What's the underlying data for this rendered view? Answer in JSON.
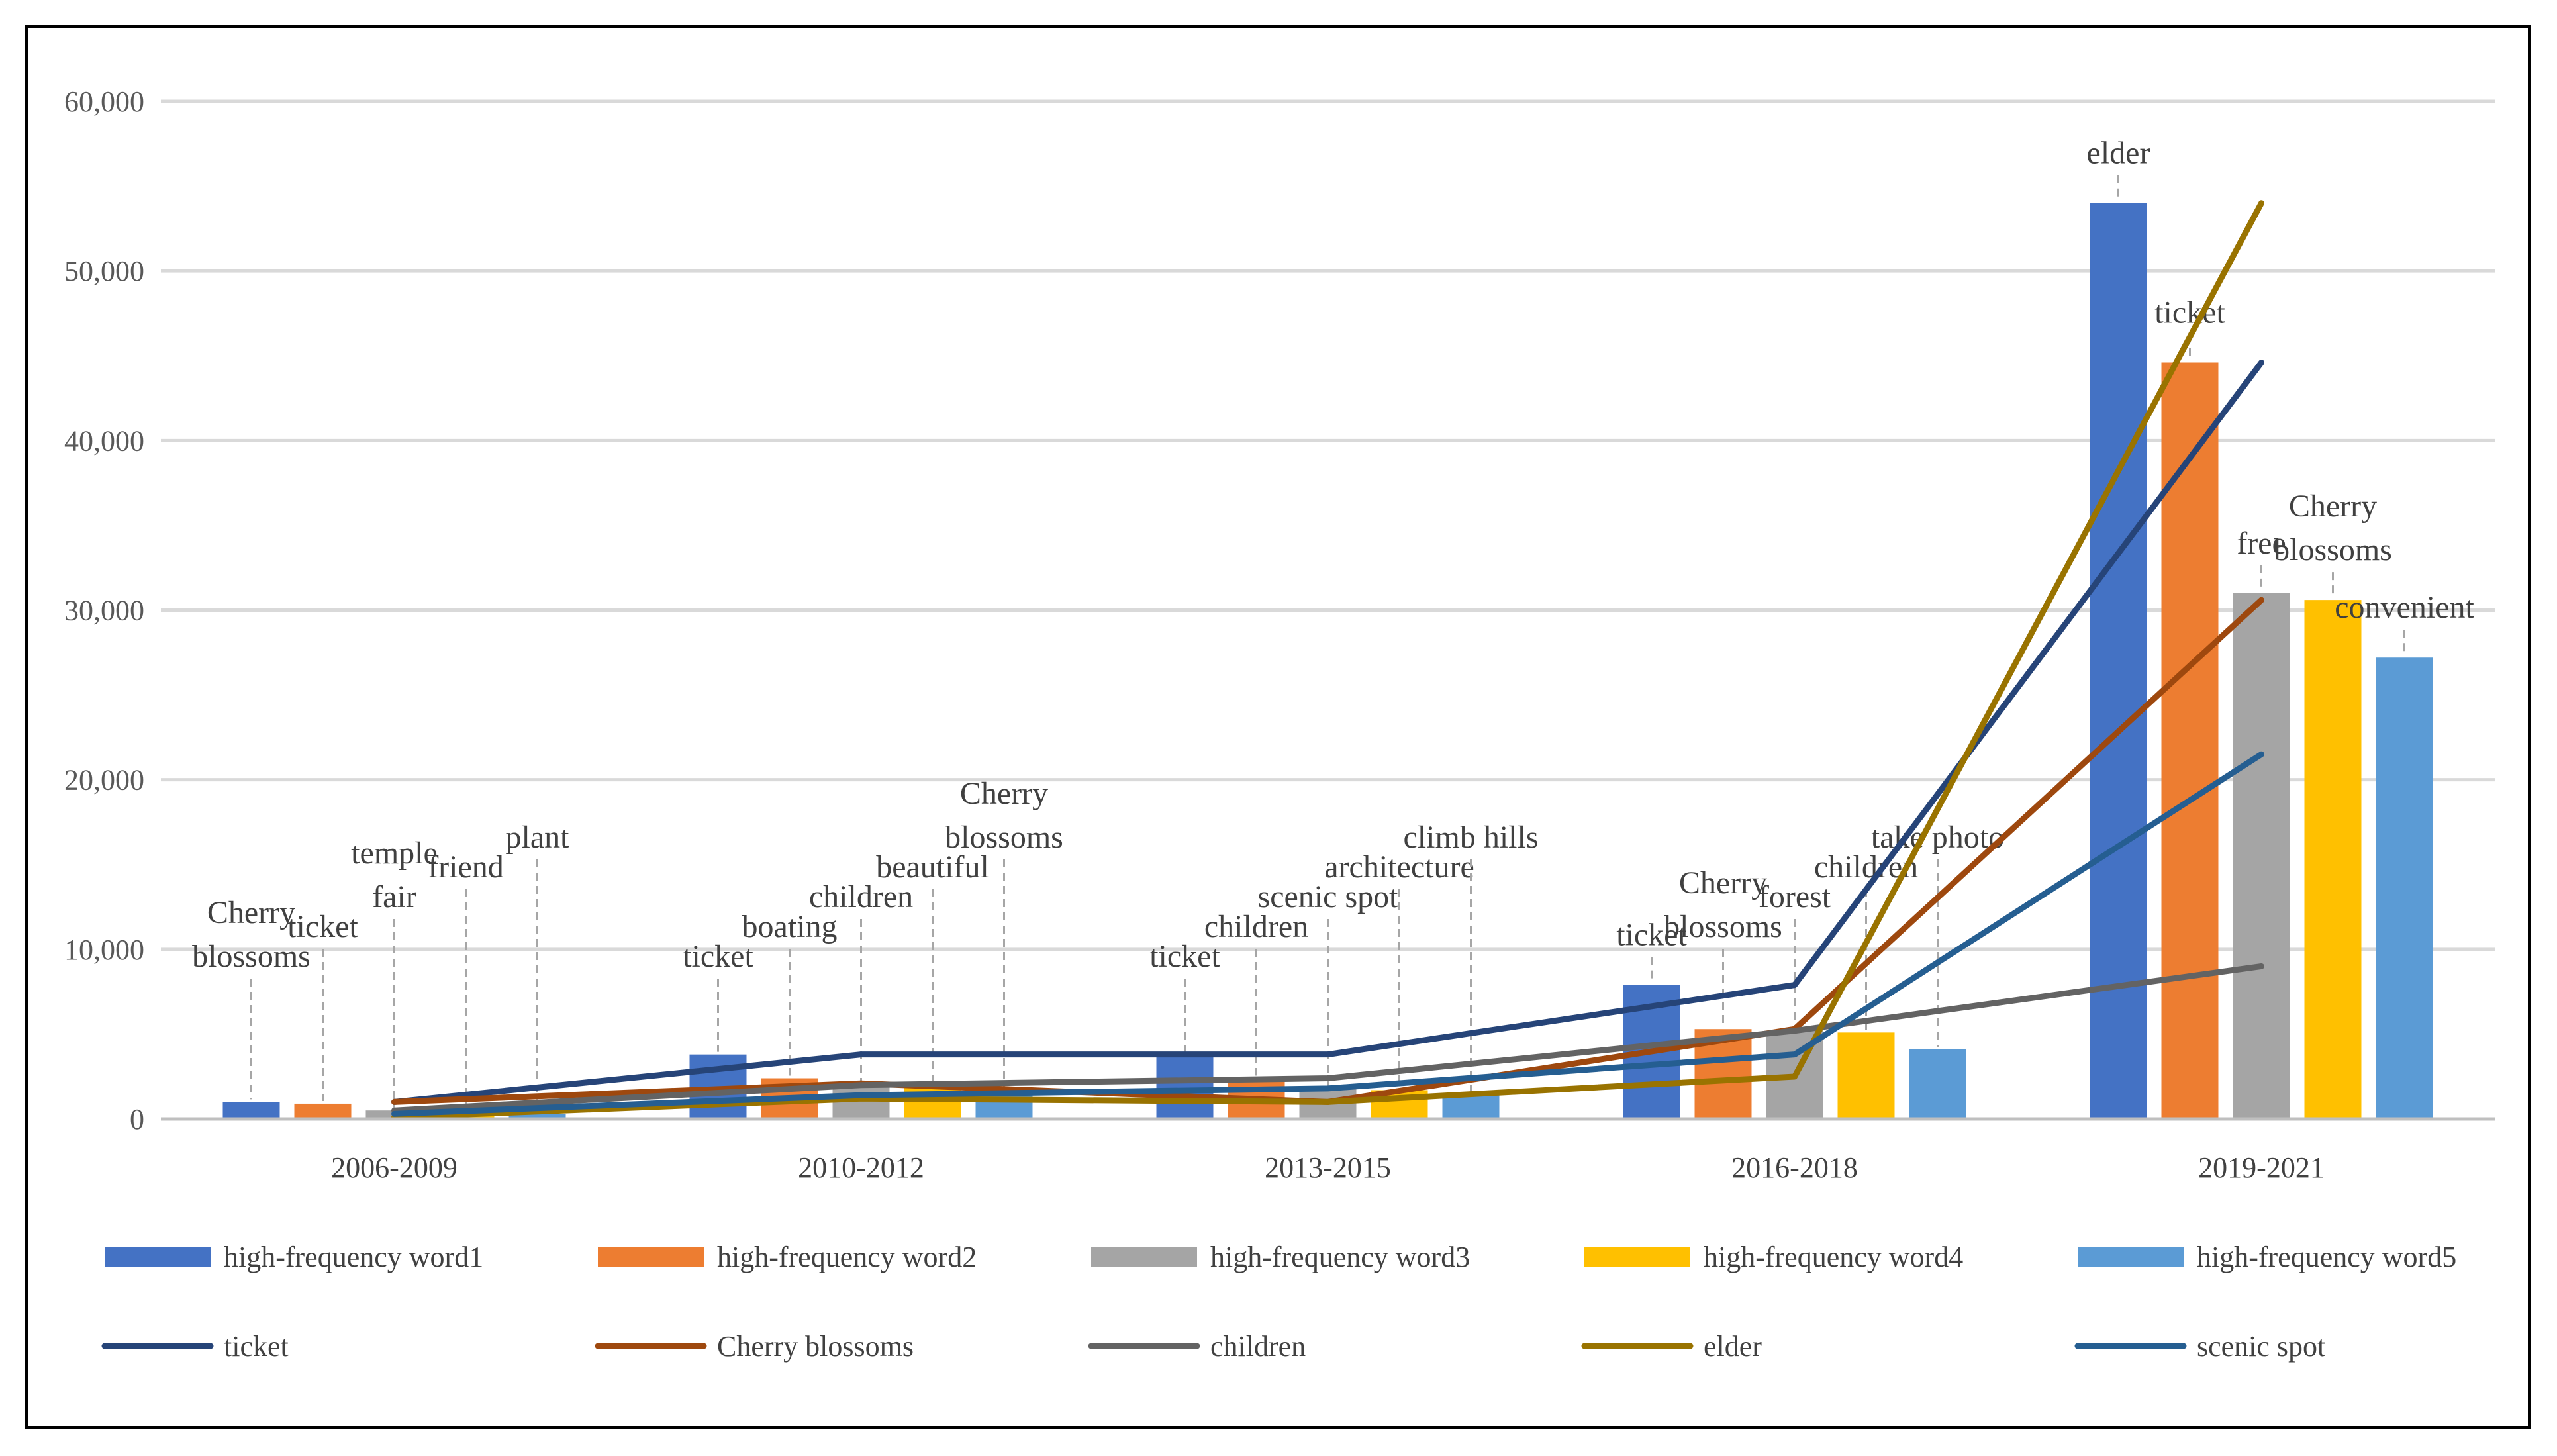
{
  "chart_data": {
    "type": "bar",
    "categories": [
      "2006-2009",
      "2010-2012",
      "2013-2015",
      "2016-2018",
      "2019-2021"
    ],
    "ylim": [
      0,
      60000
    ],
    "yticks": [
      0,
      10000,
      20000,
      30000,
      40000,
      50000,
      60000
    ],
    "ytick_labels": [
      "0",
      "10,000",
      "20,000",
      "30,000",
      "40,000",
      "50,000",
      "60,000"
    ],
    "grid": true,
    "legend_position": "bottom",
    "bar_series": [
      {
        "name": "high-frequency word1",
        "color": "#4472C4",
        "values": [
          1000,
          3800,
          3800,
          7900,
          54000
        ]
      },
      {
        "name": "high-frequency word2",
        "color": "#ED7D31",
        "values": [
          900,
          2400,
          2400,
          5300,
          44600
        ]
      },
      {
        "name": "high-frequency word3",
        "color": "#A5A5A5",
        "values": [
          500,
          2000,
          1800,
          5200,
          31000
        ]
      },
      {
        "name": "high-frequency word4",
        "color": "#FFC000",
        "values": [
          300,
          1900,
          1700,
          5100,
          30600
        ]
      },
      {
        "name": "high-frequency word5",
        "color": "#5B9BD5",
        "values": [
          300,
          1700,
          1400,
          4100,
          27200
        ]
      }
    ],
    "line_series": [
      {
        "name": "ticket",
        "color": "#264478",
        "values": [
          1000,
          3800,
          3800,
          7900,
          44600
        ]
      },
      {
        "name": "Cherry blossoms",
        "color": "#9E480E",
        "values": [
          1000,
          2100,
          1000,
          5300,
          30600
        ]
      },
      {
        "name": "children",
        "color": "#636363",
        "values": [
          500,
          2000,
          2400,
          5200,
          9000
        ]
      },
      {
        "name": "elder",
        "color": "#997300",
        "values": [
          100,
          1200,
          1000,
          2500,
          54000
        ]
      },
      {
        "name": "scenic spot",
        "color": "#255E91",
        "values": [
          300,
          1400,
          1800,
          3800,
          21500
        ]
      }
    ],
    "data_labels": [
      [
        [
          "Cherry",
          "blossoms"
        ],
        [
          "ticket"
        ],
        [
          "temple",
          "fair"
        ],
        [
          "friend"
        ],
        [
          "plant"
        ]
      ],
      [
        [
          "ticket"
        ],
        [
          "boating"
        ],
        [
          "children"
        ],
        [
          "beautiful"
        ],
        [
          "Cherry",
          "blossoms"
        ]
      ],
      [
        [
          "ticket"
        ],
        [
          "children"
        ],
        [
          "scenic spot"
        ],
        [
          "architecture"
        ],
        [
          "climb hills"
        ]
      ],
      [
        [
          "ticket"
        ],
        [
          "Cherry",
          "blossoms"
        ],
        [
          "forest"
        ],
        [
          "children"
        ],
        [
          "take photo"
        ]
      ],
      [
        [
          "elder"
        ],
        [
          "ticket"
        ],
        [
          "free"
        ],
        [
          "Cherry",
          "blossoms"
        ],
        [
          "convenient"
        ]
      ]
    ]
  }
}
